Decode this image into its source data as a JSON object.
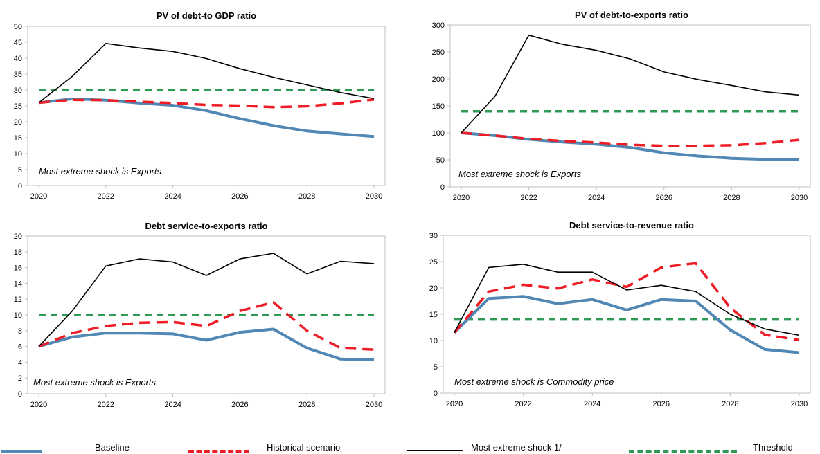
{
  "colors": {
    "baseline": "#5087b4",
    "historical": "#ee1c24",
    "extreme": "#000000",
    "threshold": "#2e9a55"
  },
  "chart_data": [
    {
      "type": "line",
      "title": "PV of debt-to GDP ratio",
      "annotation": "Most extreme shock is Exports",
      "x": [
        2020,
        2021,
        2022,
        2023,
        2024,
        2025,
        2026,
        2027,
        2028,
        2029,
        2030
      ],
      "xticks": [
        2020,
        2022,
        2024,
        2026,
        2028,
        2030
      ],
      "ylim": [
        0,
        50
      ],
      "yticks": [
        0,
        5,
        10,
        15,
        20,
        25,
        30,
        35,
        40,
        45,
        50
      ],
      "series": [
        {
          "key": "baseline",
          "values": [
            26,
            27.2,
            26.8,
            25.9,
            25.2,
            23.5,
            21,
            18.8,
            17.1,
            16.2,
            15.4
          ]
        },
        {
          "key": "historical",
          "values": [
            26,
            26.9,
            26.8,
            26.3,
            25.9,
            25.3,
            25.1,
            24.6,
            24.9,
            25.8,
            27
          ]
        },
        {
          "key": "extreme",
          "values": [
            26,
            34.3,
            44.6,
            43.2,
            42.1,
            39.9,
            36.7,
            34,
            31.6,
            29.2,
            27.3
          ]
        },
        {
          "key": "threshold",
          "values": [
            30,
            30,
            30,
            30,
            30,
            30,
            30,
            30,
            30,
            30,
            30
          ]
        }
      ]
    },
    {
      "type": "line",
      "title": "PV of debt-to-exports ratio",
      "annotation": "Most extreme shock is Exports",
      "x": [
        2020,
        2021,
        2022,
        2023,
        2024,
        2025,
        2026,
        2027,
        2028,
        2029,
        2030
      ],
      "xticks": [
        2020,
        2022,
        2024,
        2026,
        2028,
        2030
      ],
      "ylim": [
        0,
        300
      ],
      "yticks": [
        0,
        50,
        100,
        150,
        200,
        250,
        300
      ],
      "series": [
        {
          "key": "baseline",
          "values": [
            100,
            95,
            88,
            83,
            79,
            73,
            63,
            57,
            53,
            51,
            50
          ]
        },
        {
          "key": "historical",
          "values": [
            100,
            95,
            89,
            85,
            82,
            78,
            76,
            76,
            77,
            81,
            87
          ]
        },
        {
          "key": "extreme",
          "values": [
            100,
            168,
            281,
            264,
            253,
            237,
            213,
            199,
            188,
            176,
            170
          ]
        },
        {
          "key": "threshold",
          "values": [
            140,
            140,
            140,
            140,
            140,
            140,
            140,
            140,
            140,
            140,
            140
          ]
        }
      ]
    },
    {
      "type": "line",
      "title": "Debt service-to-exports ratio",
      "annotation": "Most extreme shock is Exports",
      "x": [
        2020,
        2021,
        2022,
        2023,
        2024,
        2025,
        2026,
        2027,
        2028,
        2029,
        2030
      ],
      "xticks": [
        2020,
        2022,
        2024,
        2026,
        2028,
        2030
      ],
      "ylim": [
        0,
        20
      ],
      "yticks": [
        0,
        2,
        4,
        6,
        8,
        10,
        12,
        14,
        16,
        18,
        20
      ],
      "series": [
        {
          "key": "baseline",
          "values": [
            6,
            7.2,
            7.7,
            7.7,
            7.6,
            6.8,
            7.8,
            8.2,
            5.8,
            4.4,
            4.3
          ]
        },
        {
          "key": "historical",
          "values": [
            6,
            7.7,
            8.6,
            9,
            9.1,
            8.6,
            10.5,
            11.6,
            8,
            5.8,
            5.6
          ]
        },
        {
          "key": "extreme",
          "values": [
            6,
            10.5,
            16.2,
            17.1,
            16.7,
            15,
            17.1,
            17.8,
            15.2,
            16.8,
            16.5
          ]
        },
        {
          "key": "threshold",
          "values": [
            10,
            10,
            10,
            10,
            10,
            10,
            10,
            10,
            10,
            10,
            10
          ]
        }
      ]
    },
    {
      "type": "line",
      "title": "Debt service-to-revenue ratio",
      "annotation": "Most extreme shock is Commodity price",
      "x": [
        2020,
        2021,
        2022,
        2023,
        2024,
        2025,
        2026,
        2027,
        2028,
        2029,
        2030
      ],
      "xticks": [
        2020,
        2022,
        2024,
        2026,
        2028,
        2030
      ],
      "ylim": [
        0,
        30
      ],
      "yticks": [
        0,
        5,
        10,
        15,
        20,
        25,
        30
      ],
      "series": [
        {
          "key": "baseline",
          "values": [
            11.5,
            18,
            18.4,
            17,
            17.8,
            15.8,
            17.8,
            17.5,
            12,
            8.3,
            7.7
          ]
        },
        {
          "key": "historical",
          "values": [
            11.5,
            19.3,
            20.6,
            19.9,
            21.6,
            20.2,
            23.9,
            24.7,
            16.2,
            11.1,
            10.1
          ]
        },
        {
          "key": "extreme",
          "values": [
            11.5,
            23.9,
            24.5,
            23,
            23,
            19.6,
            20.5,
            19.3,
            15,
            12.2,
            11
          ]
        },
        {
          "key": "threshold",
          "values": [
            14,
            14,
            14,
            14,
            14,
            14,
            14,
            14,
            14,
            14,
            14
          ]
        }
      ]
    }
  ],
  "legend": [
    {
      "key": "baseline",
      "label": "Baseline"
    },
    {
      "key": "historical",
      "label": "Historical scenario"
    },
    {
      "key": "extreme",
      "label": "Most extreme shock 1/"
    },
    {
      "key": "threshold",
      "label": "Threshold"
    }
  ]
}
